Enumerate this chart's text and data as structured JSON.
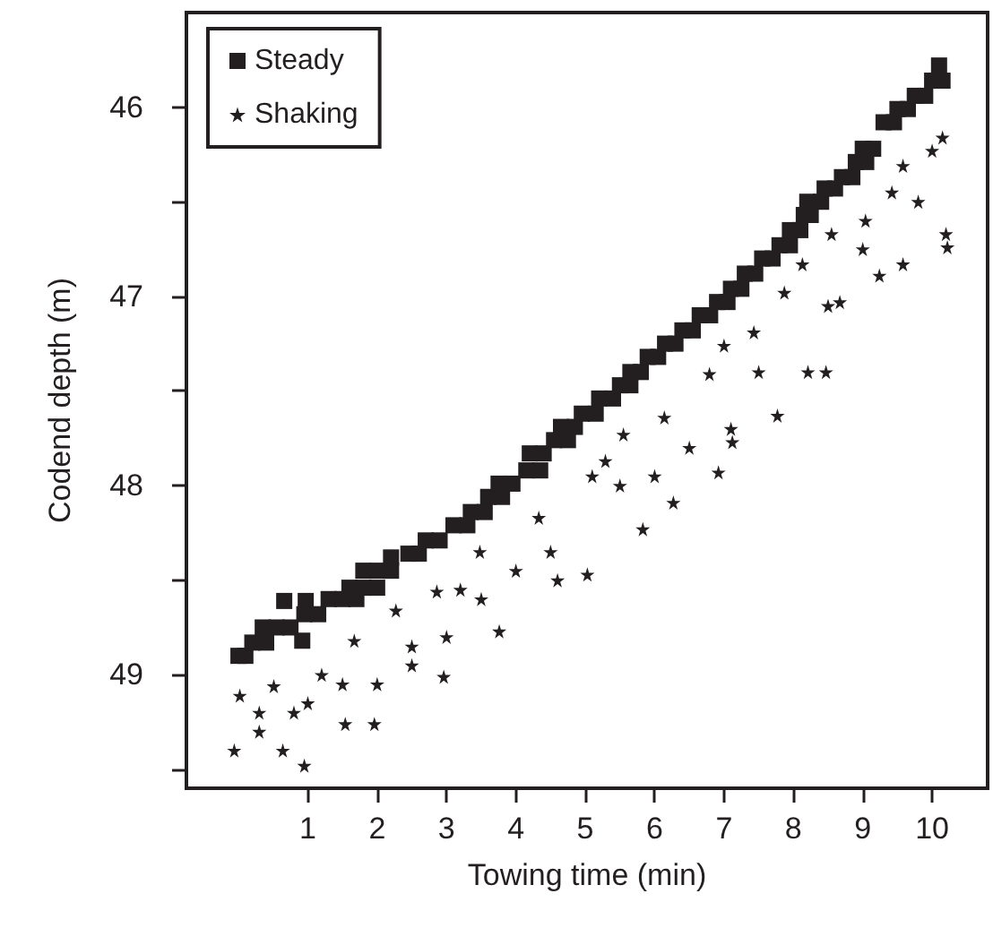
{
  "chart_data": {
    "type": "scatter",
    "xlabel": "Towing time (min)",
    "ylabel": "Codend depth (m)",
    "xlim": [
      -0.75,
      10.8
    ],
    "xticks": [
      1,
      2,
      3,
      4,
      5,
      6,
      7,
      8,
      9,
      10
    ],
    "ylim": [
      49.6,
      45.5
    ],
    "yticks": [
      46,
      {
        "value": 46.5,
        "label": null
      },
      47,
      {
        "value": 47.5,
        "label": null
      },
      48,
      {
        "value": 48.5,
        "label": null
      },
      49,
      {
        "value": 49.5,
        "label": null
      }
    ],
    "grid": false,
    "legend": "top left",
    "series": [
      {
        "name": "Steady",
        "color": "#231f20",
        "marker": "square",
        "x": [
          0.0,
          0.1,
          0.2,
          0.4,
          0.35,
          0.55,
          0.75,
          0.66,
          0.97,
          0.92,
          0.95,
          1.15,
          1.3,
          1.5,
          1.7,
          1.6,
          1.8,
          2.0,
          1.8,
          2.0,
          2.2,
          2.2,
          2.45,
          2.6,
          2.7,
          2.9,
          3.1,
          3.3,
          3.35,
          3.55,
          3.6,
          3.8,
          3.75,
          3.95,
          4.15,
          4.35,
          4.2,
          4.4,
          4.55,
          4.75,
          4.65,
          4.85,
          4.95,
          5.15,
          5.2,
          5.4,
          5.5,
          5.65,
          5.65,
          5.8,
          5.9,
          6.05,
          6.15,
          6.3,
          6.4,
          6.55,
          6.65,
          6.8,
          6.9,
          7.05,
          7.1,
          7.25,
          7.3,
          7.45,
          7.55,
          7.7,
          7.8,
          7.95,
          7.95,
          8.1,
          8.15,
          8.25,
          8.2,
          8.4,
          8.45,
          8.6,
          8.7,
          8.85,
          8.9,
          9.05,
          9.0,
          9.15,
          9.3,
          9.45,
          9.5,
          9.65,
          9.75,
          9.9,
          10.0,
          10.15,
          10.1
        ],
        "values": [
          48.9,
          48.9,
          48.83,
          48.83,
          48.75,
          48.75,
          48.75,
          48.61,
          48.61,
          48.82,
          48.68,
          48.68,
          48.6,
          48.6,
          48.6,
          48.54,
          48.54,
          48.54,
          48.45,
          48.45,
          48.45,
          48.38,
          48.36,
          48.36,
          48.29,
          48.29,
          48.21,
          48.21,
          48.14,
          48.14,
          48.06,
          48.06,
          47.99,
          47.99,
          47.92,
          47.92,
          47.83,
          47.83,
          47.76,
          47.76,
          47.69,
          47.69,
          47.62,
          47.62,
          47.54,
          47.54,
          47.47,
          47.47,
          47.4,
          47.4,
          47.32,
          47.32,
          47.25,
          47.25,
          47.18,
          47.18,
          47.1,
          47.1,
          47.03,
          47.03,
          46.96,
          46.96,
          46.88,
          46.88,
          46.8,
          46.8,
          46.73,
          46.73,
          46.65,
          46.65,
          46.57,
          46.57,
          46.5,
          46.5,
          46.43,
          46.43,
          46.37,
          46.37,
          46.29,
          46.29,
          46.22,
          46.22,
          46.08,
          46.08,
          46.01,
          46.01,
          45.94,
          45.94,
          45.86,
          45.86,
          45.78
        ]
      },
      {
        "name": "Shaking",
        "color": "#231f20",
        "marker": "star",
        "x": [
          -0.06,
          0.02,
          0.3,
          0.51,
          0.64,
          0.8,
          0.95,
          1.2,
          1.54,
          1.67,
          1.96,
          2.0,
          2.27,
          2.5,
          2.86,
          2.96,
          3.2,
          3.48,
          3.76,
          4.0,
          4.33,
          4.6,
          5.03,
          5.1,
          5.29,
          5.55,
          5.83,
          6.14,
          6.27,
          6.5,
          6.79,
          6.92,
          7.0,
          7.1,
          7.12,
          7.43,
          7.77,
          7.87,
          8.13,
          8.21,
          8.47,
          8.55,
          8.67,
          9.04,
          9.24,
          9.42,
          9.58,
          9.58,
          10.0,
          10.15,
          10.2,
          10.22,
          0.3,
          1.0,
          1.5,
          2.5,
          3.0,
          3.5,
          4.5,
          5.5,
          6.0,
          7.5,
          8.5,
          9.0,
          9.8
        ],
        "values": [
          49.4,
          49.11,
          49.3,
          49.06,
          49.4,
          49.2,
          49.48,
          49.0,
          49.26,
          48.82,
          49.26,
          49.05,
          48.66,
          48.85,
          48.56,
          49.01,
          48.55,
          48.35,
          48.77,
          48.45,
          48.17,
          48.5,
          48.47,
          47.95,
          47.87,
          47.73,
          48.23,
          47.64,
          48.09,
          47.8,
          47.41,
          47.93,
          47.26,
          47.7,
          47.77,
          47.19,
          47.63,
          46.98,
          46.83,
          47.4,
          47.4,
          46.67,
          47.03,
          46.6,
          46.89,
          46.45,
          46.31,
          46.83,
          46.23,
          46.16,
          46.67,
          46.74,
          49.2,
          49.15,
          49.05,
          48.95,
          48.8,
          48.6,
          48.35,
          48.0,
          47.95,
          47.4,
          47.05,
          46.75,
          46.5
        ]
      }
    ]
  }
}
